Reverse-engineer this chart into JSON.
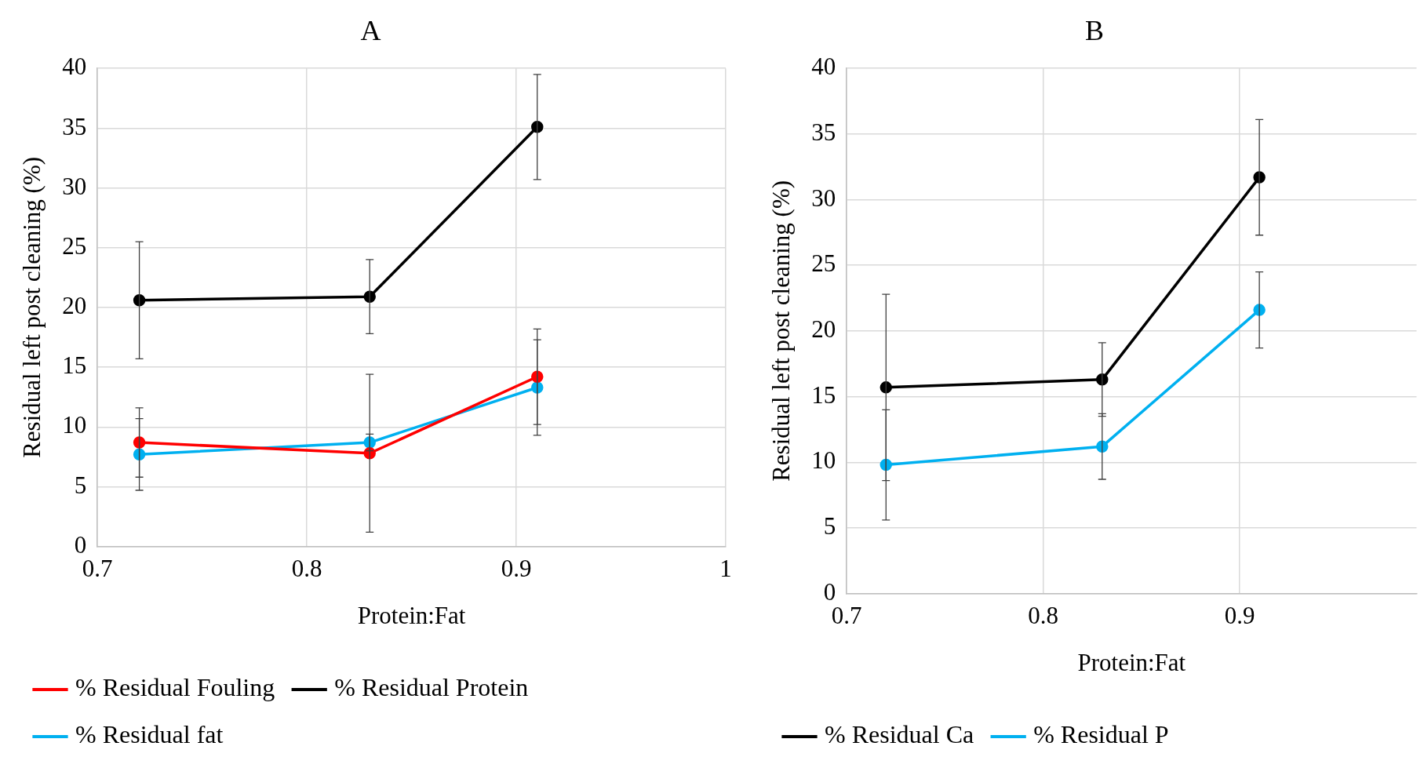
{
  "chart_data": [
    {
      "type": "line",
      "title": "A",
      "xlabel": "Protein:Fat",
      "ylabel": "Residual left post cleaning (%)",
      "xlim": [
        0.7,
        1
      ],
      "xticks": [
        0.7,
        0.8,
        0.9,
        1
      ],
      "ylim": [
        0,
        40
      ],
      "yticks": [
        0,
        5,
        10,
        15,
        20,
        25,
        30,
        35,
        40
      ],
      "grid": true,
      "legend": "bottom",
      "marker": "circle",
      "series": [
        {
          "name": "% Residual Fouling",
          "color": "#ff0000",
          "x": [
            0.72,
            0.83,
            0.91
          ],
          "values": [
            8.7,
            7.8,
            14.2
          ],
          "errors": [
            2.9,
            6.6,
            4.0
          ]
        },
        {
          "name": "% Residual Protein",
          "color": "#000000",
          "x": [
            0.72,
            0.83,
            0.91
          ],
          "values": [
            20.6,
            20.9,
            35.1
          ],
          "errors": [
            4.9,
            3.1,
            4.4
          ]
        },
        {
          "name": "% Residual fat",
          "color": "#00b0f0",
          "x": [
            0.72,
            0.83,
            0.91
          ],
          "values": [
            7.7,
            8.7,
            13.3
          ],
          "errors": [
            3.0,
            0.7,
            4.0
          ]
        }
      ]
    },
    {
      "type": "line",
      "title": "B",
      "xlabel": "Protein:Fat",
      "ylabel": "Residual left post cleaning (%)",
      "xlim": [
        0.7,
        0.99
      ],
      "xticks": [
        0.7,
        0.8,
        0.9
      ],
      "ylim": [
        0,
        40
      ],
      "yticks": [
        0,
        5,
        10,
        15,
        20,
        25,
        30,
        35,
        40
      ],
      "grid": true,
      "legend": "bottom",
      "marker": "circle",
      "series": [
        {
          "name": "% Residual Ca",
          "color": "#000000",
          "x": [
            0.72,
            0.83,
            0.91
          ],
          "values": [
            15.7,
            16.3,
            31.7
          ],
          "errors": [
            7.1,
            2.8,
            4.4
          ]
        },
        {
          "name": "% Residual P",
          "color": "#00b0f0",
          "x": [
            0.72,
            0.83,
            0.91
          ],
          "values": [
            9.8,
            11.2,
            21.6
          ],
          "errors": [
            4.2,
            2.5,
            2.9
          ]
        }
      ]
    }
  ]
}
